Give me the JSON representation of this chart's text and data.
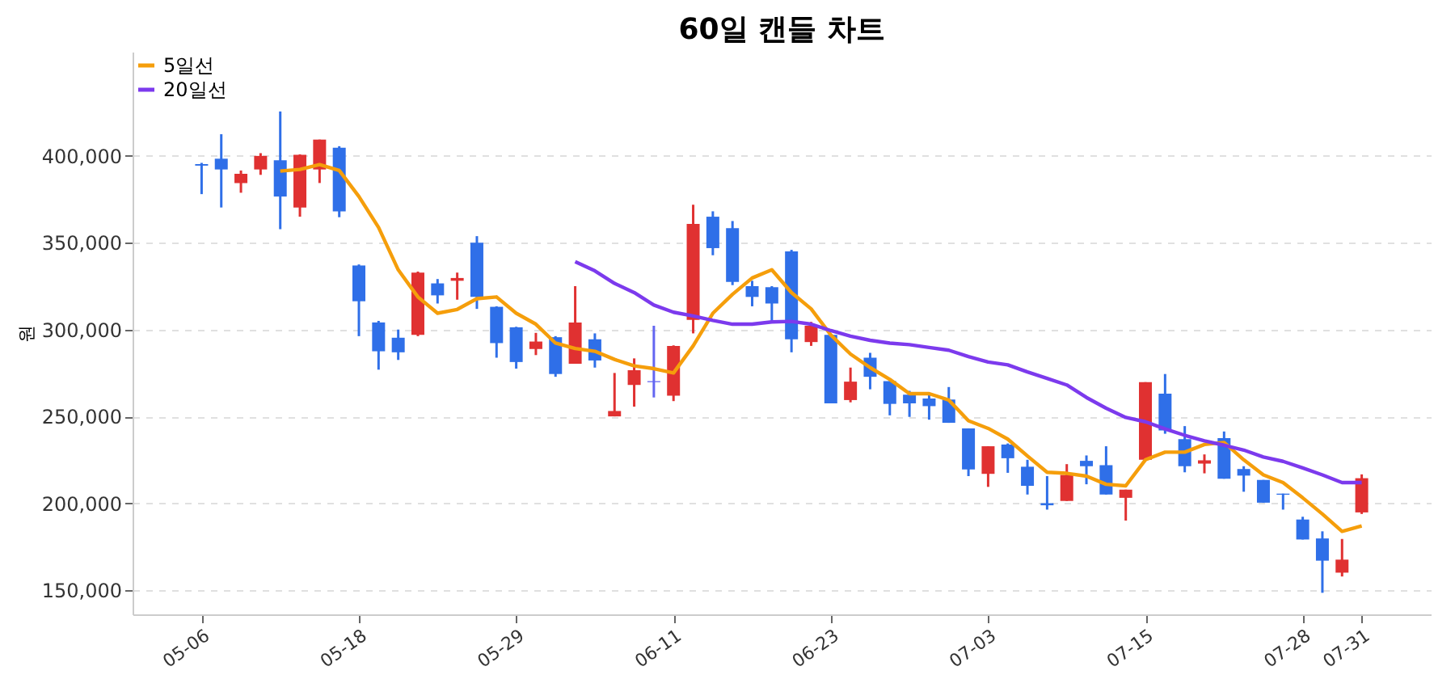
{
  "chart_data": {
    "type": "candlestick",
    "title": "60일 캔들 차트",
    "ylabel": "원",
    "categories": [
      "05-06",
      null,
      null,
      null,
      null,
      null,
      null,
      null,
      "05-18",
      null,
      null,
      null,
      null,
      null,
      null,
      null,
      "05-29",
      null,
      null,
      null,
      null,
      null,
      null,
      null,
      "06-11",
      null,
      null,
      null,
      null,
      null,
      null,
      null,
      "06-23",
      null,
      null,
      null,
      null,
      null,
      null,
      null,
      "07-03",
      null,
      null,
      null,
      null,
      null,
      null,
      null,
      "07-15",
      null,
      null,
      null,
      null,
      null,
      null,
      null,
      "07-28",
      null,
      null,
      "07-31"
    ],
    "ohlc": [
      [
        395300,
        396000,
        378000,
        394400
      ],
      [
        398400,
        412500,
        370300,
        392200
      ],
      [
        384400,
        391600,
        378800,
        389700
      ],
      [
        392200,
        401600,
        389100,
        400000
      ],
      [
        397500,
        425600,
        357800,
        376600
      ],
      [
        370300,
        400900,
        365000,
        400600
      ],
      [
        392200,
        409400,
        384400,
        409400
      ],
      [
        404700,
        405600,
        364700,
        368100
      ],
      [
        336900,
        337500,
        296200,
        316300
      ],
      [
        304100,
        305000,
        276900,
        287500
      ],
      [
        295300,
        300000,
        282500,
        286900
      ],
      [
        296900,
        333400,
        296200,
        332800
      ],
      [
        326600,
        329100,
        315000,
        319700
      ],
      [
        328100,
        332800,
        317200,
        329700
      ],
      [
        350000,
        353800,
        311900,
        318800
      ],
      [
        313100,
        313400,
        283800,
        292200
      ],
      [
        301300,
        301600,
        277500,
        281300
      ],
      [
        288800,
        298100,
        285300,
        293100
      ],
      [
        295600,
        296200,
        272800,
        274400
      ],
      [
        280300,
        325000,
        280300,
        304100
      ],
      [
        294400,
        297800,
        278100,
        282200
      ],
      [
        250000,
        275000,
        250000,
        253100
      ],
      [
        268100,
        283400,
        255600,
        276600
      ],
      [
        270300,
        302200,
        260900,
        269700
      ],
      [
        261900,
        290900,
        258800,
        290600
      ],
      [
        305600,
        371900,
        297800,
        360900
      ],
      [
        365000,
        368100,
        342800,
        346900
      ],
      [
        358400,
        362500,
        325600,
        327500
      ],
      [
        325000,
        328100,
        313400,
        318800
      ],
      [
        324400,
        325000,
        304700,
        315000
      ],
      [
        345000,
        345900,
        286900,
        294400
      ],
      [
        292800,
        304400,
        290600,
        302200
      ],
      [
        296900,
        297500,
        257500,
        257500
      ],
      [
        259400,
        278100,
        258100,
        270000
      ],
      [
        283800,
        286600,
        265600,
        272800
      ],
      [
        270300,
        270300,
        250600,
        257200
      ],
      [
        262500,
        264700,
        249700,
        257500
      ],
      [
        260300,
        263800,
        248100,
        255900
      ],
      [
        259700,
        266900,
        246300,
        246300
      ],
      [
        243100,
        243100,
        215600,
        219400
      ],
      [
        216900,
        232800,
        209400,
        232800
      ],
      [
        233800,
        234400,
        217500,
        225900
      ],
      [
        221000,
        225000,
        205000,
        210000
      ],
      [
        200000,
        215600,
        196300,
        198800
      ],
      [
        201300,
        222500,
        201300,
        216300
      ],
      [
        224400,
        227500,
        210900,
        221300
      ],
      [
        221900,
        232800,
        205000,
        205000
      ],
      [
        203100,
        207800,
        190000,
        207800
      ],
      [
        225000,
        269700,
        225000,
        269700
      ],
      [
        263100,
        274400,
        240000,
        241900
      ],
      [
        236900,
        244400,
        217800,
        221300
      ],
      [
        222800,
        228100,
        217200,
        224700
      ],
      [
        237500,
        241300,
        214100,
        214100
      ],
      [
        219700,
        221300,
        206600,
        215900
      ],
      [
        213400,
        213400,
        200300,
        200300
      ],
      [
        205500,
        205500,
        196300,
        204900
      ],
      [
        190600,
        192200,
        179100,
        179100
      ],
      [
        179700,
        183800,
        148400,
        166900
      ],
      [
        160000,
        179400,
        157800,
        167500
      ],
      [
        194700,
        216600,
        193800,
        214400
      ]
    ],
    "colors": [
      "#2f6fe8",
      "#2f6fe8",
      "#e03131",
      "#e03131",
      "#2f6fe8",
      "#e03131",
      "#e03131",
      "#2f6fe8",
      "#2f6fe8",
      "#2f6fe8",
      "#2f6fe8",
      "#e03131",
      "#2f6fe8",
      "#e03131",
      "#2f6fe8",
      "#2f6fe8",
      "#2f6fe8",
      "#e03131",
      "#2f6fe8",
      "#e03131",
      "#2f6fe8",
      "#e03131",
      "#e03131",
      "#6366f1",
      "#e03131",
      "#e03131",
      "#2f6fe8",
      "#2f6fe8",
      "#2f6fe8",
      "#2f6fe8",
      "#2f6fe8",
      "#e03131",
      "#2f6fe8",
      "#e03131",
      "#2f6fe8",
      "#2f6fe8",
      "#2f6fe8",
      "#2f6fe8",
      "#2f6fe8",
      "#2f6fe8",
      "#e03131",
      "#2f6fe8",
      "#2f6fe8",
      "#2f6fe8",
      "#e03131",
      "#2f6fe8",
      "#2f6fe8",
      "#e03131",
      "#e03131",
      "#2f6fe8",
      "#2f6fe8",
      "#e03131",
      "#2f6fe8",
      "#2f6fe8",
      "#2f6fe8",
      "#2f6fe8",
      "#2f6fe8",
      "#2f6fe8",
      "#e03131",
      "#e03131"
    ],
    "series": [
      {
        "name": "5일선",
        "type": "line",
        "color": "#f59e0b",
        "values": [
          null,
          null,
          null,
          null,
          391300,
          392200,
          395000,
          391600,
          376600,
          358800,
          334400,
          318800,
          309400,
          311600,
          317800,
          318800,
          309400,
          303100,
          292200,
          289100,
          287500,
          282800,
          279100,
          277500,
          275000,
          290600,
          309400,
          320300,
          329700,
          334400,
          321300,
          311900,
          296900,
          285900,
          278100,
          271300,
          263100,
          263100,
          259400,
          247500,
          243100,
          236900,
          227200,
          217800,
          217200,
          215600,
          210900,
          210000,
          225000,
          229400,
          229400,
          233800,
          235000,
          225000,
          216300,
          211900,
          203100,
          193800,
          183800,
          186900
        ]
      },
      {
        "name": "20일선",
        "type": "line",
        "color": "#7c3aed",
        "values": [
          null,
          null,
          null,
          null,
          null,
          null,
          null,
          null,
          null,
          null,
          null,
          null,
          null,
          null,
          null,
          null,
          null,
          null,
          null,
          339100,
          333800,
          326600,
          321300,
          314100,
          310000,
          307800,
          305300,
          303100,
          303100,
          304400,
          304700,
          303100,
          299400,
          296200,
          293800,
          292200,
          291300,
          289700,
          288100,
          284400,
          281300,
          279700,
          275600,
          271900,
          268100,
          260900,
          254700,
          249400,
          246900,
          242800,
          239100,
          235900,
          233400,
          230600,
          226600,
          224100,
          220300,
          216300,
          211900,
          211900
        ]
      }
    ],
    "ylim": [
      136000,
      460000
    ],
    "yticks": [
      {
        "value": 150000,
        "label": "150,000"
      },
      {
        "value": 200000,
        "label": "200,000"
      },
      {
        "value": 250000,
        "label": "250,000"
      },
      {
        "value": 300000,
        "label": "300,000"
      },
      {
        "value": 350000,
        "label": "350,000"
      },
      {
        "value": 400000,
        "label": "400,000"
      }
    ],
    "grid": "y",
    "legend": "top left"
  }
}
